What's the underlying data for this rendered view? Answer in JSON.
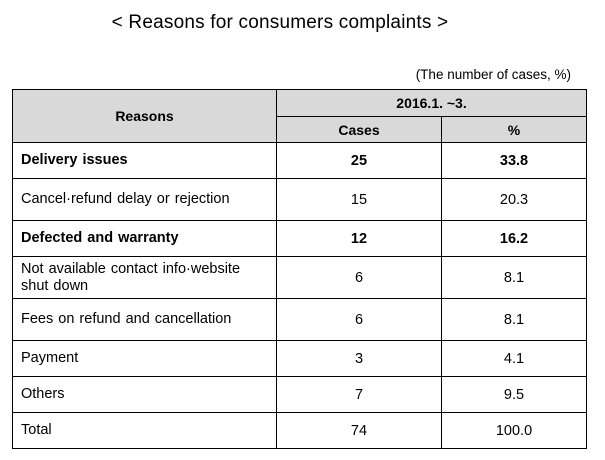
{
  "title": "< Reasons for consumers complaints >",
  "unit_note": "(The number of cases, %)",
  "table": {
    "col_reasons": "Reasons",
    "period": "2016.1.  ~3.",
    "col_cases": "Cases",
    "col_percent": "%",
    "rows": [
      {
        "reason": "Delivery issues",
        "cases": "25",
        "percent": "33.8",
        "bold": true
      },
      {
        "reason": "Cancel·refund delay or rejection",
        "cases": "15",
        "percent": "20.3",
        "bold": false
      },
      {
        "reason": "Defected    and warranty",
        "cases": "12",
        "percent": "16.2",
        "bold": true
      },
      {
        "reason": "Not    available contact info·website shut down",
        "cases": "6",
        "percent": "8.1",
        "bold": false
      },
      {
        "reason": "Fees    on refund and cancellation",
        "cases": "6",
        "percent": "8.1",
        "bold": false
      },
      {
        "reason": "Payment",
        "cases": "3",
        "percent": "4.1",
        "bold": false
      },
      {
        "reason": "Others",
        "cases": "7",
        "percent": "9.5",
        "bold": false
      },
      {
        "reason": "Total",
        "cases": "74",
        "percent": "100.0",
        "bold": false
      }
    ]
  }
}
